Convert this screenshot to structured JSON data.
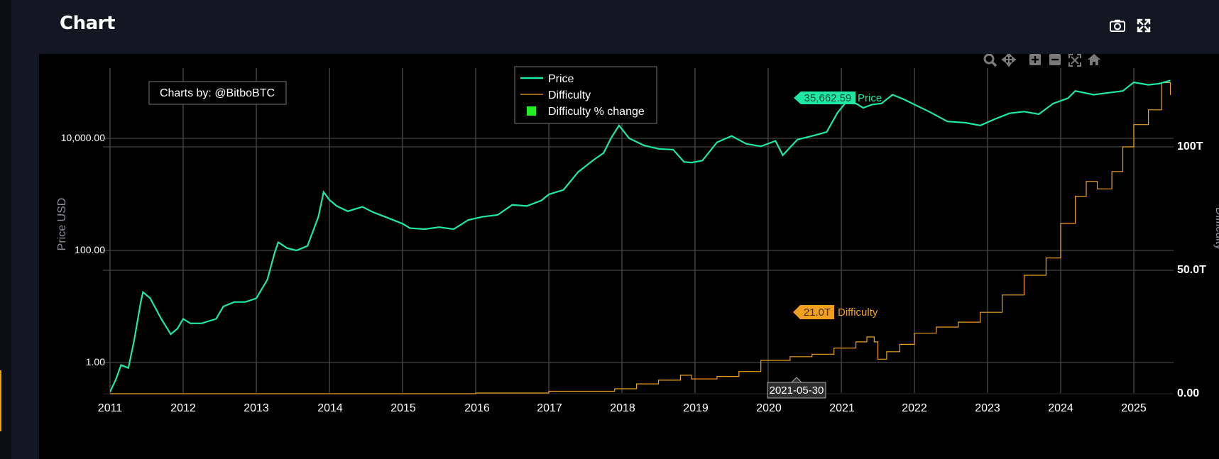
{
  "header": {
    "title": "Chart",
    "camera_icon": "camera-icon",
    "fullscreen_icon": "fullscreen-icon"
  },
  "modebar": {
    "icons": [
      "zoom-icon",
      "pan-icon",
      "zoom-in-icon",
      "zoom-out-icon",
      "autoscale-icon",
      "home-icon"
    ]
  },
  "watermark": "Charts by: @BitboBTC",
  "legend": {
    "price": "Price",
    "difficulty": "Difficulty",
    "difficulty_change": "Difficulty % change"
  },
  "hover": {
    "price_value": "35,662.59",
    "price_label": "Price",
    "difficulty_value": "21.0T",
    "difficulty_label": "Difficulty",
    "date": "2021-05-30"
  },
  "colors": {
    "price": "#1de9a5",
    "difficulty": "#f0a020",
    "difficulty_change": "#22ee22",
    "grid": "#444444",
    "background": "#000000"
  },
  "chart_data": {
    "type": "line",
    "title": "",
    "ylabel": "Price USD",
    "y2label": "Difficulty",
    "xticks": [
      "2011",
      "2012",
      "2013",
      "2014",
      "2015",
      "2016",
      "2017",
      "2018",
      "2019",
      "2020",
      "2021",
      "2022",
      "2023",
      "2024",
      "2025"
    ],
    "yticks": [
      "1.00",
      "100.00",
      "10,000.00"
    ],
    "y2ticks": [
      "0.00",
      "50.0T",
      "100T"
    ],
    "xlim": [
      2011.0,
      2025.6
    ],
    "ylim_log10": [
      -0.28,
      2.8
    ],
    "ylim_log10_price": [
      -0.28,
      4.8
    ],
    "y2lim": [
      0,
      130
    ],
    "legend_position": "top-center",
    "series": [
      {
        "name": "Price",
        "unit": "USD",
        "scale": "log",
        "x": [
          2011.0,
          2011.08,
          2011.15,
          2011.25,
          2011.33,
          2011.42,
          2011.45,
          2011.55,
          2011.7,
          2011.83,
          2011.92,
          2012.0,
          2012.1,
          2012.25,
          2012.45,
          2012.55,
          2012.7,
          2012.85,
          2013.0,
          2013.15,
          2013.25,
          2013.3,
          2013.42,
          2013.55,
          2013.7,
          2013.85,
          2013.92,
          2014.0,
          2014.1,
          2014.25,
          2014.45,
          2014.6,
          2014.8,
          2015.0,
          2015.1,
          2015.3,
          2015.5,
          2015.7,
          2015.9,
          2016.1,
          2016.3,
          2016.5,
          2016.7,
          2016.9,
          2017.0,
          2017.2,
          2017.4,
          2017.6,
          2017.75,
          2017.85,
          2017.96,
          2018.1,
          2018.3,
          2018.5,
          2018.7,
          2018.85,
          2018.95,
          2019.1,
          2019.3,
          2019.5,
          2019.7,
          2019.9,
          2020.1,
          2020.2,
          2020.4,
          2020.6,
          2020.8,
          2020.95,
          2021.1,
          2021.3,
          2021.42,
          2021.55,
          2021.7,
          2021.85,
          2022.0,
          2022.2,
          2022.45,
          2022.7,
          2022.9,
          2023.1,
          2023.3,
          2023.5,
          2023.7,
          2023.9,
          2024.1,
          2024.2,
          2024.45,
          2024.65,
          2024.85,
          2025.0,
          2025.2,
          2025.35,
          2025.5
        ],
        "y": [
          0.3,
          0.5,
          0.9,
          0.8,
          2.5,
          12,
          18,
          14,
          6,
          3.2,
          4,
          6,
          5,
          5,
          6,
          10,
          12,
          12,
          14,
          30,
          90,
          140,
          110,
          100,
          120,
          400,
          1100,
          800,
          620,
          500,
          600,
          480,
          380,
          300,
          250,
          240,
          260,
          240,
          350,
          400,
          430,
          650,
          620,
          780,
          1000,
          1200,
          2500,
          4000,
          5500,
          10000,
          17000,
          10000,
          7500,
          6500,
          6300,
          3800,
          3700,
          4000,
          8500,
          11000,
          8000,
          7200,
          9000,
          5000,
          9500,
          11000,
          13000,
          29000,
          50000,
          35000,
          40000,
          42000,
          60000,
          50000,
          40000,
          30000,
          20000,
          19000,
          17000,
          22000,
          28000,
          30000,
          27000,
          42000,
          52000,
          70000,
          60000,
          65000,
          70000,
          100000,
          90000,
          95000,
          108000
        ]
      },
      {
        "name": "Difficulty",
        "unit": "T",
        "scale": "linear",
        "x": [
          2011.0,
          2016.0,
          2017.0,
          2017.9,
          2018.2,
          2018.5,
          2018.8,
          2018.95,
          2019.3,
          2019.6,
          2019.9,
          2020.3,
          2020.6,
          2020.9,
          2021.2,
          2021.35,
          2021.45,
          2021.5,
          2021.62,
          2021.8,
          2022.0,
          2022.3,
          2022.6,
          2022.9,
          2023.2,
          2023.5,
          2023.8,
          2024.0,
          2024.2,
          2024.35,
          2024.5,
          2024.7,
          2024.85,
          2025.0,
          2025.2,
          2025.38,
          2025.5
        ],
        "y": [
          0,
          0.3,
          1,
          2,
          4,
          5.5,
          7.5,
          6,
          7,
          9,
          13.5,
          15,
          16,
          18.5,
          21,
          23,
          21,
          14,
          17,
          20,
          24.5,
          27,
          29,
          33,
          40,
          48,
          55,
          69,
          80,
          86,
          83,
          90,
          100,
          109,
          115,
          126,
          121
        ]
      }
    ]
  }
}
